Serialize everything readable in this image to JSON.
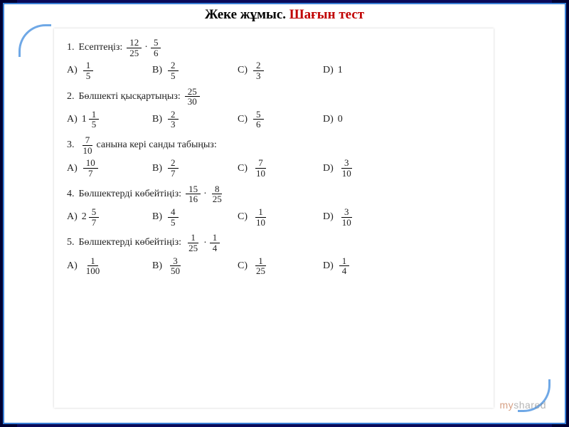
{
  "title": {
    "part1": "Жеке жұмыс. ",
    "part2": "Шағын тест"
  },
  "watermark": {
    "pre": "my",
    "post": "shared"
  },
  "questions": [
    {
      "num": "1.",
      "pre": "Есептеңіз: ",
      "expr": {
        "type": "mul",
        "a": {
          "n": "12",
          "d": "25"
        },
        "b": {
          "n": "5",
          "d": "6"
        }
      },
      "options": [
        {
          "l": "A)",
          "v": {
            "type": "frac",
            "n": "1",
            "d": "5"
          }
        },
        {
          "l": "B)",
          "v": {
            "type": "frac",
            "n": "2",
            "d": "5"
          }
        },
        {
          "l": "C)",
          "v": {
            "type": "frac",
            "n": "2",
            "d": "3"
          }
        },
        {
          "l": "D)",
          "v": {
            "type": "text",
            "t": "1"
          }
        }
      ]
    },
    {
      "num": "2.",
      "pre": "Бөлшекті қысқартыңыз: ",
      "expr": {
        "type": "frac",
        "n": "25",
        "d": "30"
      },
      "options": [
        {
          "l": "A)",
          "v": {
            "type": "mixed",
            "w": "1",
            "n": "1",
            "d": "5"
          }
        },
        {
          "l": "B)",
          "v": {
            "type": "frac",
            "n": "2",
            "d": "3"
          }
        },
        {
          "l": "C)",
          "v": {
            "type": "frac",
            "n": "5",
            "d": "6"
          }
        },
        {
          "l": "D)",
          "v": {
            "type": "text",
            "t": "0"
          }
        }
      ]
    },
    {
      "num": "3.",
      "leadFrac": {
        "n": "7",
        "d": "10"
      },
      "post": " санына кері санды табыңыз:",
      "options": [
        {
          "l": "A)",
          "v": {
            "type": "frac",
            "n": "10",
            "d": "7"
          }
        },
        {
          "l": "B)",
          "v": {
            "type": "frac",
            "n": "2",
            "d": "7"
          }
        },
        {
          "l": "C)",
          "v": {
            "type": "frac",
            "n": "7",
            "d": "10"
          }
        },
        {
          "l": "D)",
          "v": {
            "type": "frac",
            "n": "3",
            "d": "10"
          }
        }
      ]
    },
    {
      "num": "4.",
      "pre": "Бөлшектерді көбейтіңіз: ",
      "expr": {
        "type": "mul",
        "a": {
          "n": "15",
          "d": "16"
        },
        "b": {
          "n": "8",
          "d": "25"
        }
      },
      "options": [
        {
          "l": "A)",
          "v": {
            "type": "mixed",
            "w": "2",
            "n": "5",
            "d": "7"
          }
        },
        {
          "l": "B)",
          "v": {
            "type": "frac",
            "n": "4",
            "d": "5"
          }
        },
        {
          "l": "C)",
          "v": {
            "type": "frac",
            "n": "1",
            "d": "10"
          }
        },
        {
          "l": "D)",
          "v": {
            "type": "frac",
            "n": "3",
            "d": "10"
          }
        }
      ]
    },
    {
      "num": "5.",
      "pre": "Бөлшектерді көбейтіңіз: ",
      "expr": {
        "type": "mul",
        "a": {
          "n": "1",
          "d": "25"
        },
        "b": {
          "n": "1",
          "d": "4"
        }
      },
      "options": [
        {
          "l": "A)",
          "v": {
            "type": "frac",
            "n": "1",
            "d": "100"
          }
        },
        {
          "l": "B)",
          "v": {
            "type": "frac",
            "n": "3",
            "d": "50"
          }
        },
        {
          "l": "C)",
          "v": {
            "type": "frac",
            "n": "1",
            "d": "25"
          }
        },
        {
          "l": "D)",
          "v": {
            "type": "frac",
            "n": "1",
            "d": "4"
          }
        }
      ]
    }
  ]
}
